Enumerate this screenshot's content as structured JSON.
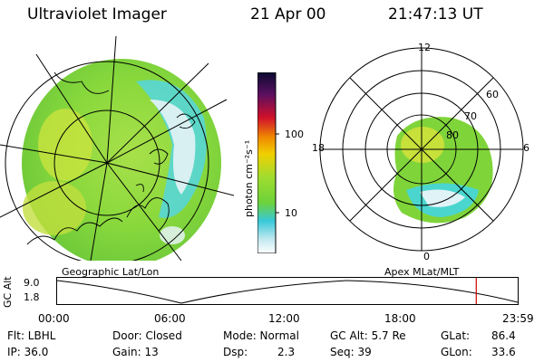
{
  "header": {
    "instrument": "Ultraviolet Imager",
    "date": "21 Apr 00",
    "time": "21:47:13 UT"
  },
  "colorbar": {
    "unit_label": "photon cm⁻²s⁻¹",
    "ticks": [
      "100",
      "10"
    ]
  },
  "geo_panel": {
    "caption": "Geographic Lat/Lon"
  },
  "polar_panel": {
    "caption": "Apex MLat/MLT",
    "mlt_labels": [
      "12",
      "18",
      "6",
      "0"
    ],
    "lat_labels": [
      "60",
      "70",
      "80"
    ]
  },
  "timeline": {
    "axis_label": "GC Alt",
    "y_ticks": [
      "9.0",
      "1.8"
    ],
    "x_ticks": [
      "00:00",
      "06:00",
      "12:00",
      "18:00",
      "23:59"
    ],
    "current_marker_fraction": 0.91
  },
  "status": {
    "flt": "Flt: LBHL",
    "ip": "IP: 36.0",
    "door": "Door: Closed",
    "gain": "Gain: 13",
    "mode": "Mode: Normal",
    "dsp_label": "Dsp:",
    "dsp_value": "2.3",
    "gc_alt": "GC Alt: 5.7 Re",
    "seq": "Seq: 39",
    "glat_label": "GLat:",
    "glat_value": "86.4",
    "glon_label": "GLon:",
    "glon_value": "33.6"
  },
  "colors": {
    "aurora_green": "#7fd43a",
    "aurora_yellow": "#c8e03a",
    "aurora_cyan": "#45d6e0",
    "aurora_white": "#e8f4f8",
    "marker_red": "#d00000"
  }
}
